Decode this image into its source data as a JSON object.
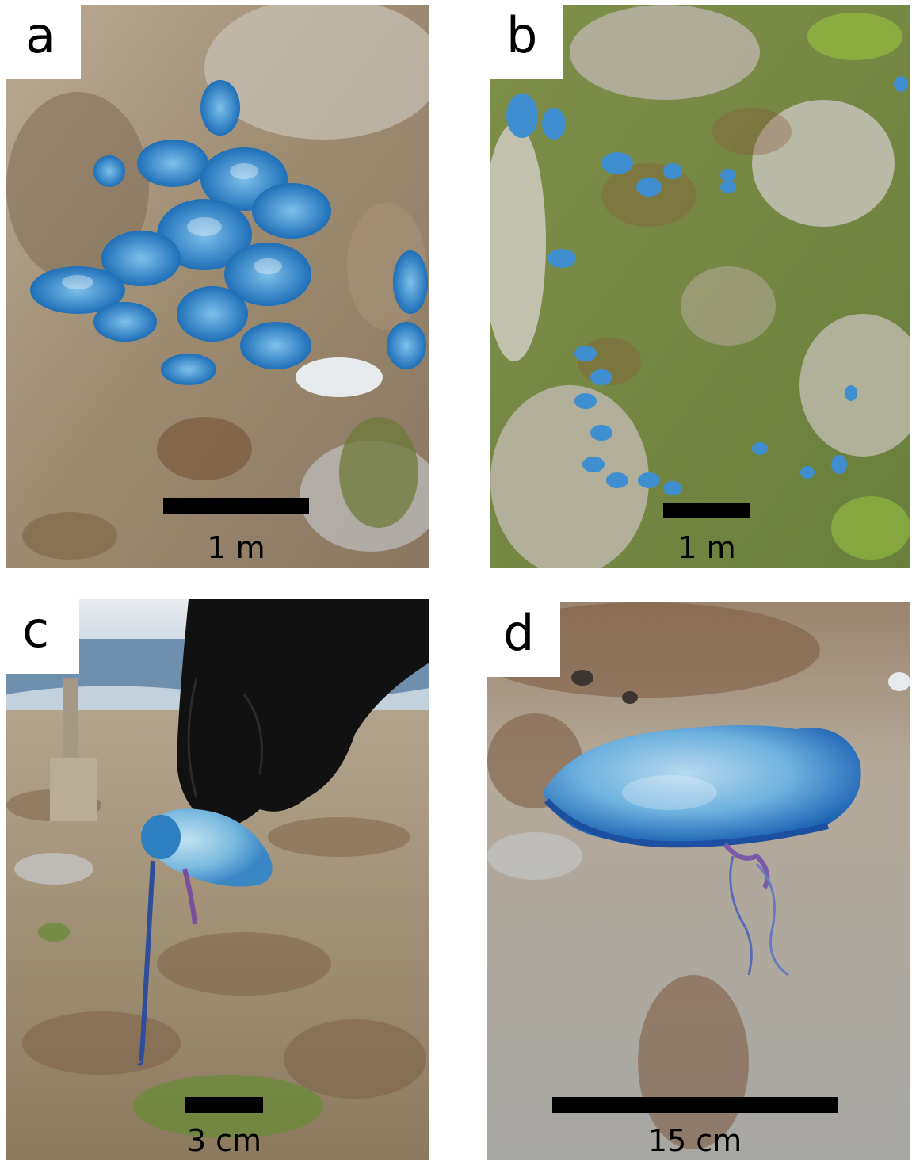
{
  "panels": [
    {
      "label": "a",
      "scale_label": "1 m"
    },
    {
      "label": "b",
      "scale_label": "1 m"
    },
    {
      "label": "c",
      "scale_label": "3 cm"
    },
    {
      "label": "d",
      "scale_label": "15 cm"
    }
  ],
  "colors": {
    "rock": "#a89680",
    "moss": "#6e8a3a",
    "velella_blue": "#3a8fd0",
    "glove": "#111111",
    "sea": "#6f8fae",
    "sky": "#dfe6ec"
  }
}
